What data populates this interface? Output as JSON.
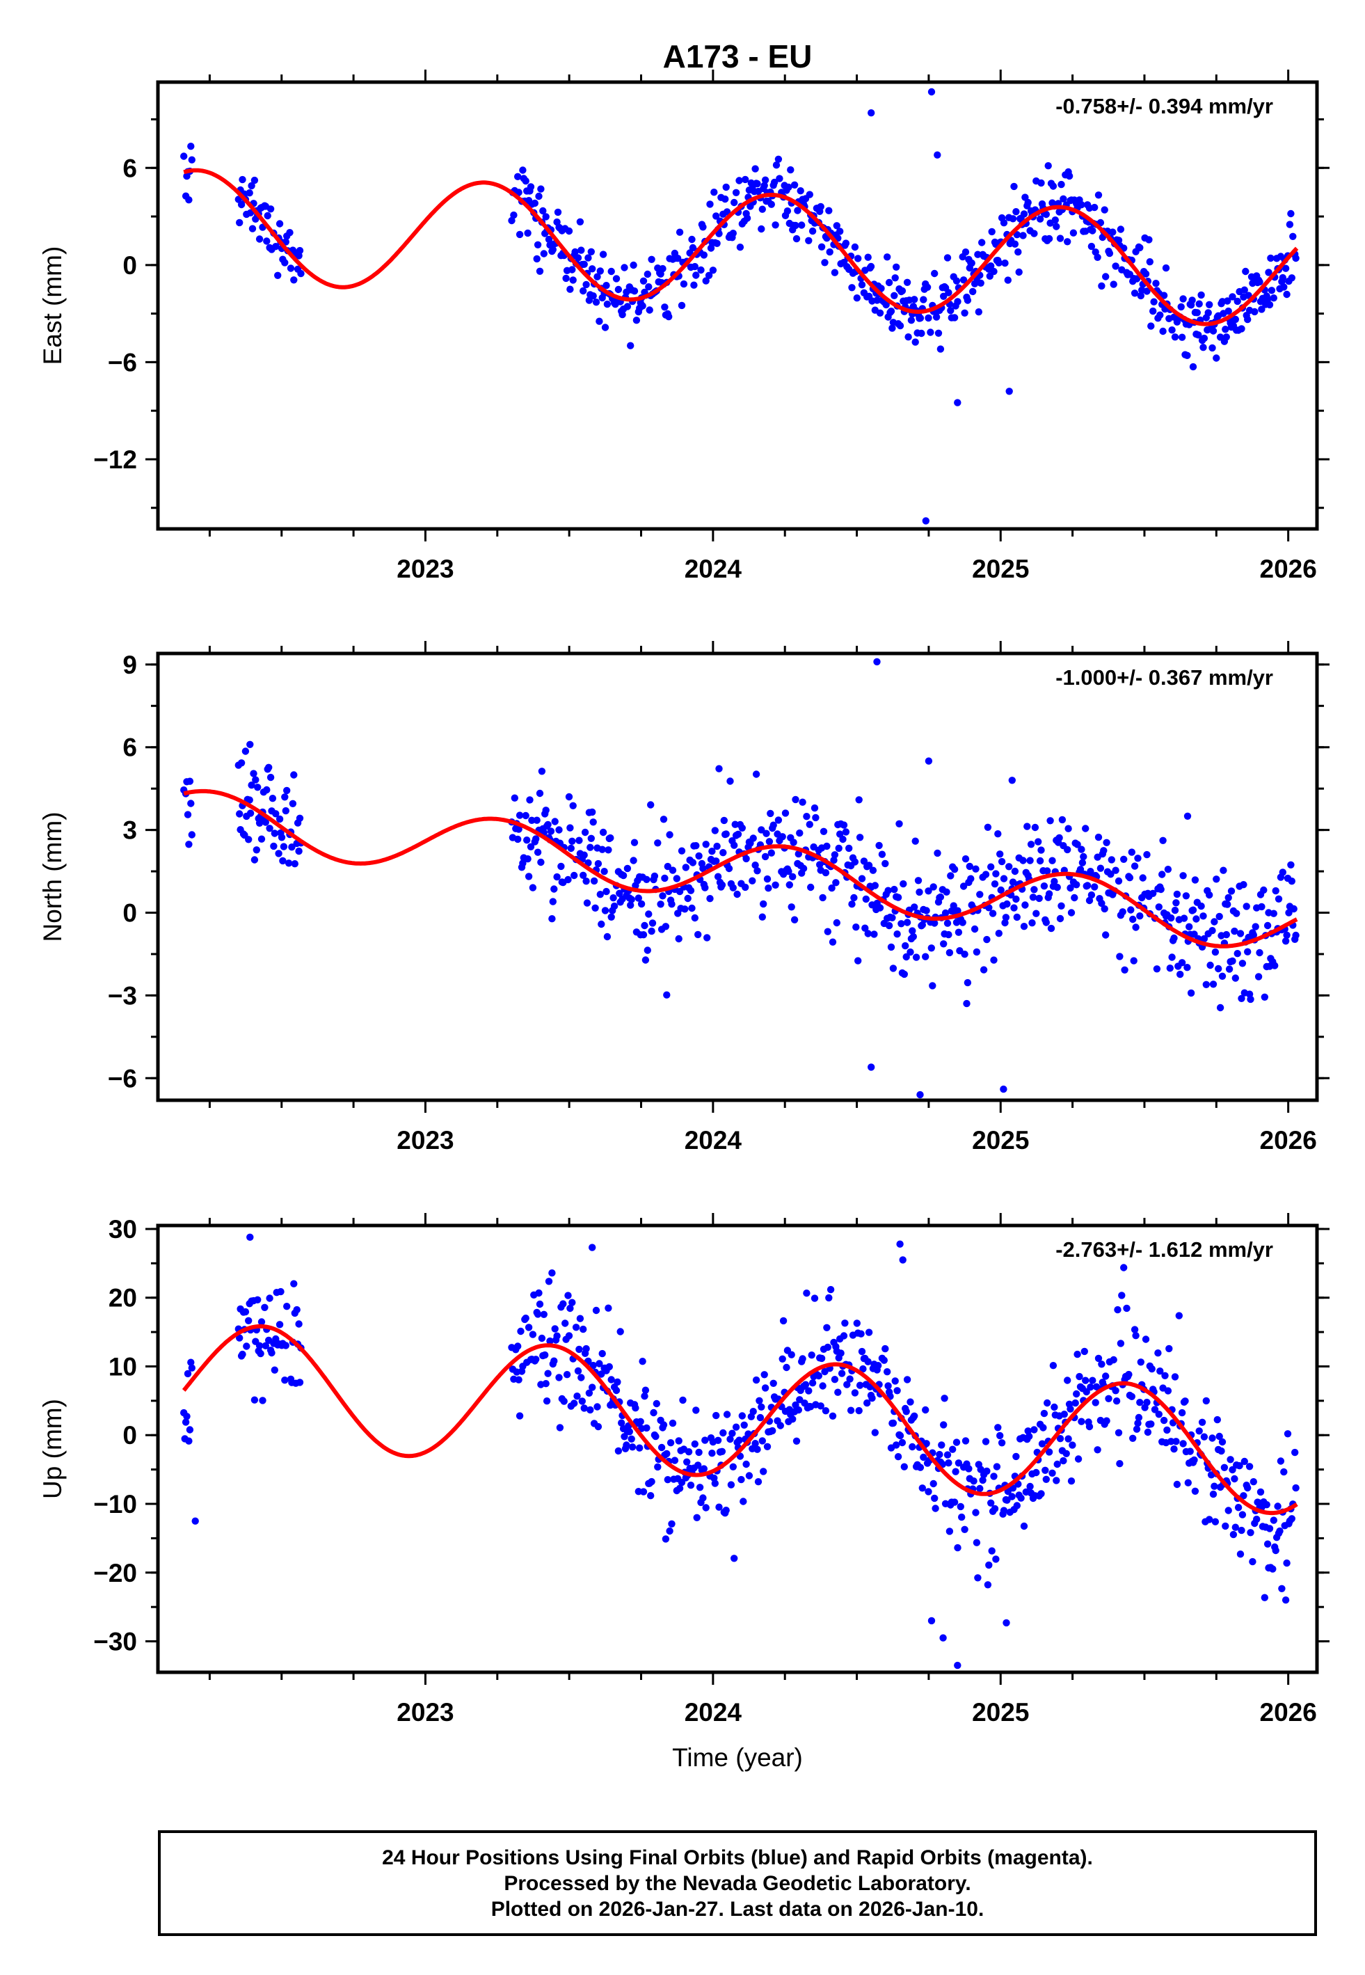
{
  "title": "A173 - EU",
  "footer": {
    "line1": "24 Hour Positions Using Final Orbits (blue) and Rapid Orbits (magenta).",
    "line2": "Processed by the Nevada Geodetic Laboratory.",
    "line3": "Plotted on 2026-Jan-27. Last data on 2026-Jan-10."
  },
  "colors": {
    "points": "#0000ff",
    "fit": "#ff0000",
    "frame": "#000000"
  },
  "chart_data": [
    {
      "type": "scatter",
      "name": "east",
      "ylabel": "East (mm)",
      "xlabel": "",
      "rate": "-0.758+/- 0.394 mm/yr",
      "xlim": [
        2022.07,
        2026.1
      ],
      "ylim": [
        -16.3,
        11.3
      ],
      "xticks": [
        2023,
        2024,
        2025,
        2026
      ],
      "yticks": [
        6,
        0,
        -6,
        -12
      ],
      "ytick_labels": [
        "6",
        "0",
        "−6",
        "−12"
      ],
      "segments": [
        [
          2022.16,
          2022.19
        ],
        [
          2022.35,
          2022.57
        ],
        [
          2023.3,
          2026.03
        ]
      ],
      "fit": {
        "t0": 2022.16,
        "t1": 2026.03,
        "offset": 1.0,
        "slope": -0.758,
        "a1": 0.9,
        "b1": 3.3,
        "a2": 0.0,
        "b2": 0.0
      },
      "scatter_sd": 1.05,
      "outliers": [
        [
          2024.55,
          9.4
        ],
        [
          2024.76,
          10.7
        ],
        [
          2024.78,
          6.8
        ],
        [
          2024.74,
          -15.8
        ],
        [
          2024.85,
          -8.5
        ],
        [
          2025.03,
          -7.8
        ]
      ]
    },
    {
      "type": "scatter",
      "name": "north",
      "ylabel": "North (mm)",
      "xlabel": "",
      "rate": "-1.000+/- 0.367 mm/yr",
      "xlim": [
        2022.07,
        2026.1
      ],
      "ylim": [
        -6.8,
        9.4
      ],
      "xticks": [
        2023,
        2024,
        2025,
        2026
      ],
      "yticks": [
        9,
        6,
        3,
        0,
        -3,
        -6
      ],
      "ytick_labels": [
        "9",
        "6",
        "3",
        "0",
        "−3",
        "−6"
      ],
      "segments": [
        [
          2022.16,
          2022.19
        ],
        [
          2022.35,
          2022.57
        ],
        [
          2023.3,
          2026.03
        ]
      ],
      "fit": {
        "t0": 2022.16,
        "t1": 2026.03,
        "offset": 1.5,
        "slope": -1.0,
        "a1": 0.0,
        "b1": 1.05,
        "a2": 0.0,
        "b2": 0.0
      },
      "scatter_sd": 1.05,
      "outliers": [
        [
          2024.57,
          9.1
        ],
        [
          2022.39,
          6.1
        ],
        [
          2024.75,
          5.5
        ],
        [
          2025.04,
          4.8
        ],
        [
          2025.65,
          3.5
        ],
        [
          2024.72,
          -6.6
        ],
        [
          2025.01,
          -6.4
        ],
        [
          2024.55,
          -5.6
        ]
      ]
    },
    {
      "type": "scatter",
      "name": "up",
      "ylabel": "Up (mm)",
      "xlabel": "Time (year)",
      "rate": "-2.763+/- 1.612 mm/yr",
      "xlim": [
        2022.07,
        2026.1
      ],
      "ylim": [
        -34.5,
        30.5
      ],
      "xticks": [
        2023,
        2024,
        2025,
        2026
      ],
      "yticks": [
        30,
        20,
        10,
        0,
        -10,
        -20,
        -30
      ],
      "ytick_labels": [
        "30",
        "20",
        "10",
        "0",
        "−10",
        "−20",
        "−30"
      ],
      "segments": [
        [
          2022.16,
          2022.19
        ],
        [
          2022.35,
          2022.57
        ],
        [
          2023.3,
          2026.03
        ]
      ],
      "fit": {
        "t0": 2022.16,
        "t1": 2026.03,
        "offset": 2.5,
        "slope": -2.763,
        "a1": -8.0,
        "b1": 3.5,
        "a2": 0.0,
        "b2": 0.0
      },
      "scatter_sd": 4.4,
      "outliers": [
        [
          2022.39,
          28.8
        ],
        [
          2024.65,
          27.8
        ],
        [
          2023.58,
          27.3
        ],
        [
          2024.66,
          25.5
        ],
        [
          2024.85,
          -33.5
        ],
        [
          2024.76,
          -27.0
        ],
        [
          2025.02,
          -27.3
        ],
        [
          2024.8,
          -29.5
        ],
        [
          2022.2,
          -12.5
        ]
      ]
    }
  ]
}
